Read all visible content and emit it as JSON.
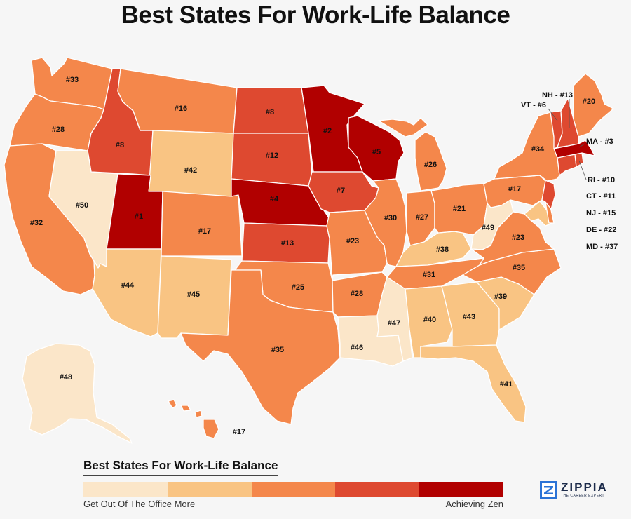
{
  "title": "Best States For Work-Life Balance",
  "colors": {
    "tier1": "#fbe6c9",
    "tier2": "#f9c483",
    "tier3": "#f4874b",
    "tier4": "#de4930",
    "tier5": "#b10000",
    "border": "#ffffff",
    "background": "#f6f6f6"
  },
  "states": [
    {
      "id": "WA",
      "rank": "#33",
      "tier": 3
    },
    {
      "id": "OR",
      "rank": "#28",
      "tier": 3
    },
    {
      "id": "CA",
      "rank": "#32",
      "tier": 3
    },
    {
      "id": "ID",
      "rank": "#8",
      "tier": 4
    },
    {
      "id": "NV",
      "rank": "#50",
      "tier": 1
    },
    {
      "id": "MT",
      "rank": "#16",
      "tier": 3
    },
    {
      "id": "WY",
      "rank": "#42",
      "tier": 2
    },
    {
      "id": "UT",
      "rank": "#1",
      "tier": 5
    },
    {
      "id": "AZ",
      "rank": "#44",
      "tier": 2
    },
    {
      "id": "CO",
      "rank": "#17",
      "tier": 3
    },
    {
      "id": "NM",
      "rank": "#45",
      "tier": 2
    },
    {
      "id": "ND",
      "rank": "#8",
      "tier": 4
    },
    {
      "id": "SD",
      "rank": "#12",
      "tier": 4
    },
    {
      "id": "NE",
      "rank": "#4",
      "tier": 5
    },
    {
      "id": "KS",
      "rank": "#13",
      "tier": 4
    },
    {
      "id": "OK",
      "rank": "#25",
      "tier": 3
    },
    {
      "id": "TX",
      "rank": "#35",
      "tier": 3
    },
    {
      "id": "MN",
      "rank": "#2",
      "tier": 5
    },
    {
      "id": "IA",
      "rank": "#7",
      "tier": 4
    },
    {
      "id": "MO",
      "rank": "#23",
      "tier": 3
    },
    {
      "id": "AR",
      "rank": "#28",
      "tier": 3
    },
    {
      "id": "LA",
      "rank": "#46",
      "tier": 1
    },
    {
      "id": "WI",
      "rank": "#5",
      "tier": 5
    },
    {
      "id": "IL",
      "rank": "#30",
      "tier": 3
    },
    {
      "id": "MS",
      "rank": "#47",
      "tier": 1
    },
    {
      "id": "MI",
      "rank": "#26",
      "tier": 3
    },
    {
      "id": "IN",
      "rank": "#27",
      "tier": 3
    },
    {
      "id": "KY",
      "rank": "#38",
      "tier": 2
    },
    {
      "id": "TN",
      "rank": "#31",
      "tier": 3
    },
    {
      "id": "AL",
      "rank": "#40",
      "tier": 2
    },
    {
      "id": "OH",
      "rank": "#21",
      "tier": 3
    },
    {
      "id": "WV",
      "rank": "#49",
      "tier": 1
    },
    {
      "id": "GA",
      "rank": "#43",
      "tier": 2
    },
    {
      "id": "FL",
      "rank": "#41",
      "tier": 2
    },
    {
      "id": "SC",
      "rank": "#39",
      "tier": 2
    },
    {
      "id": "NC",
      "rank": "#35",
      "tier": 3
    },
    {
      "id": "VA",
      "rank": "#23",
      "tier": 3
    },
    {
      "id": "PA",
      "rank": "#17",
      "tier": 3
    },
    {
      "id": "NY",
      "rank": "#34",
      "tier": 3
    },
    {
      "id": "ME",
      "rank": "#20",
      "tier": 3
    },
    {
      "id": "AK",
      "rank": "#48",
      "tier": 1
    },
    {
      "id": "HI",
      "rank": "#17",
      "tier": 3
    },
    {
      "id": "MD",
      "rank": "#37",
      "tier": 2,
      "callout": "MD - #37"
    },
    {
      "id": "DE",
      "rank": "#22",
      "tier": 3,
      "callout": "DE - #22"
    },
    {
      "id": "NJ",
      "rank": "#15",
      "tier": 4,
      "callout": "NJ - #15"
    },
    {
      "id": "CT",
      "rank": "#11",
      "tier": 4,
      "callout": "CT - #11"
    },
    {
      "id": "RI",
      "rank": "#10",
      "tier": 4,
      "callout": "RI - #10"
    },
    {
      "id": "MA",
      "rank": "#3",
      "tier": 5,
      "callout": "MA - #3"
    },
    {
      "id": "VT",
      "rank": "#6",
      "tier": 4,
      "callout": "VT - #6"
    },
    {
      "id": "NH",
      "rank": "#13",
      "tier": 4,
      "callout": "NH - #13"
    }
  ],
  "legend": {
    "title": "Best States For Work-Life Balance",
    "low_label": "Get Out Of The Office More",
    "high_label": "Achieving Zen"
  },
  "logo": {
    "name": "ZIPPIA",
    "tagline": "THE CAREER EXPERT"
  }
}
